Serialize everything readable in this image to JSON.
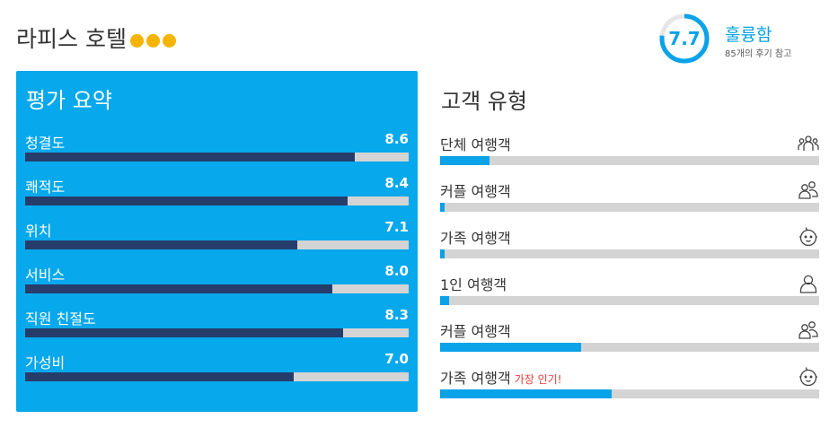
{
  "hotel": {
    "name": "라피스 호텔",
    "stars": 3,
    "star_color": "#f5b400"
  },
  "score": {
    "value": "7.7",
    "ring_fraction": 0.77,
    "label": "훌륭함",
    "reviews": "85개의 후기 참고",
    "accent": "#0aa2e8"
  },
  "summary": {
    "title": "평가 요약",
    "scale_max": 10,
    "items": [
      {
        "label": "청결도",
        "value": "8.6"
      },
      {
        "label": "쾌적도",
        "value": "8.4"
      },
      {
        "label": "위치",
        "value": "7.1"
      },
      {
        "label": "서비스",
        "value": "8.0"
      },
      {
        "label": "직원 친절도",
        "value": "8.3"
      },
      {
        "label": "가성비",
        "value": "7.0"
      }
    ]
  },
  "traveler_types": {
    "title": "고객 유형",
    "items": [
      {
        "label": "단체 여행객",
        "badge": "",
        "icon": "group-icon",
        "fraction": 0.13
      },
      {
        "label": "커플 여행객",
        "badge": "",
        "icon": "couple-icon",
        "fraction": 0.012
      },
      {
        "label": "가족 여행객",
        "badge": "",
        "icon": "baby-face-icon",
        "fraction": 0.012
      },
      {
        "label": "1인 여행객",
        "badge": "",
        "icon": "person-icon",
        "fraction": 0.024
      },
      {
        "label": "커플 여행객",
        "badge": "",
        "icon": "couple-icon",
        "fraction": 0.372
      },
      {
        "label": "가족 여행객",
        "badge": "가장 인기!",
        "icon": "baby-face-icon",
        "fraction": 0.452
      }
    ]
  }
}
